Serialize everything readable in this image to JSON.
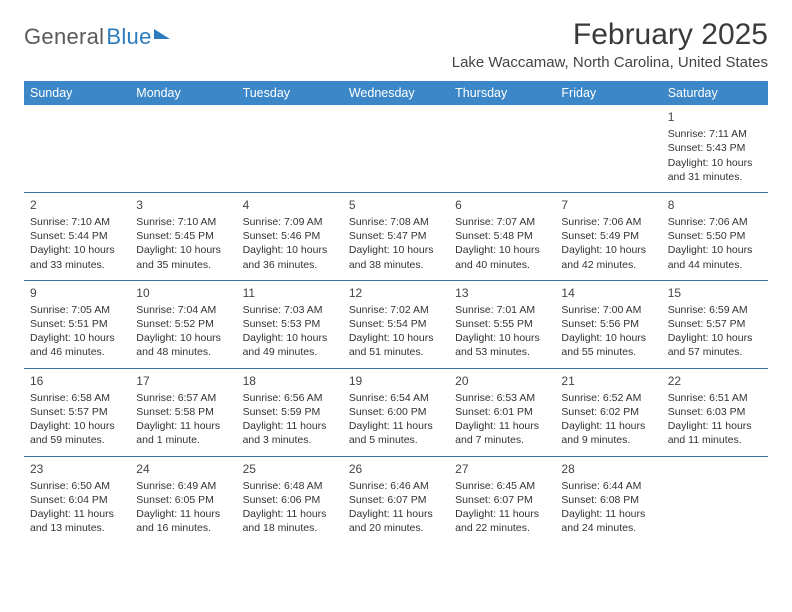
{
  "logo": {
    "textGray": "General",
    "textBlue": "Blue"
  },
  "header": {
    "month_title": "February 2025",
    "location": "Lake Waccamaw, North Carolina, United States"
  },
  "colors": {
    "header_bg": "#3b87c8",
    "header_text": "#ffffff",
    "row_border": "#3b6f9e",
    "body_text": "#333333",
    "title_text": "#3a3a3a",
    "logo_gray": "#5a5a5a",
    "logo_blue": "#2b7bbd",
    "background": "#ffffff"
  },
  "day_names": [
    "Sunday",
    "Monday",
    "Tuesday",
    "Wednesday",
    "Thursday",
    "Friday",
    "Saturday"
  ],
  "calendar": {
    "first_weekday_index": 6,
    "days": [
      {
        "n": 1,
        "sunrise": "7:11 AM",
        "sunset": "5:43 PM",
        "daylight": "10 hours and 31 minutes."
      },
      {
        "n": 2,
        "sunrise": "7:10 AM",
        "sunset": "5:44 PM",
        "daylight": "10 hours and 33 minutes."
      },
      {
        "n": 3,
        "sunrise": "7:10 AM",
        "sunset": "5:45 PM",
        "daylight": "10 hours and 35 minutes."
      },
      {
        "n": 4,
        "sunrise": "7:09 AM",
        "sunset": "5:46 PM",
        "daylight": "10 hours and 36 minutes."
      },
      {
        "n": 5,
        "sunrise": "7:08 AM",
        "sunset": "5:47 PM",
        "daylight": "10 hours and 38 minutes."
      },
      {
        "n": 6,
        "sunrise": "7:07 AM",
        "sunset": "5:48 PM",
        "daylight": "10 hours and 40 minutes."
      },
      {
        "n": 7,
        "sunrise": "7:06 AM",
        "sunset": "5:49 PM",
        "daylight": "10 hours and 42 minutes."
      },
      {
        "n": 8,
        "sunrise": "7:06 AM",
        "sunset": "5:50 PM",
        "daylight": "10 hours and 44 minutes."
      },
      {
        "n": 9,
        "sunrise": "7:05 AM",
        "sunset": "5:51 PM",
        "daylight": "10 hours and 46 minutes."
      },
      {
        "n": 10,
        "sunrise": "7:04 AM",
        "sunset": "5:52 PM",
        "daylight": "10 hours and 48 minutes."
      },
      {
        "n": 11,
        "sunrise": "7:03 AM",
        "sunset": "5:53 PM",
        "daylight": "10 hours and 49 minutes."
      },
      {
        "n": 12,
        "sunrise": "7:02 AM",
        "sunset": "5:54 PM",
        "daylight": "10 hours and 51 minutes."
      },
      {
        "n": 13,
        "sunrise": "7:01 AM",
        "sunset": "5:55 PM",
        "daylight": "10 hours and 53 minutes."
      },
      {
        "n": 14,
        "sunrise": "7:00 AM",
        "sunset": "5:56 PM",
        "daylight": "10 hours and 55 minutes."
      },
      {
        "n": 15,
        "sunrise": "6:59 AM",
        "sunset": "5:57 PM",
        "daylight": "10 hours and 57 minutes."
      },
      {
        "n": 16,
        "sunrise": "6:58 AM",
        "sunset": "5:57 PM",
        "daylight": "10 hours and 59 minutes."
      },
      {
        "n": 17,
        "sunrise": "6:57 AM",
        "sunset": "5:58 PM",
        "daylight": "11 hours and 1 minute."
      },
      {
        "n": 18,
        "sunrise": "6:56 AM",
        "sunset": "5:59 PM",
        "daylight": "11 hours and 3 minutes."
      },
      {
        "n": 19,
        "sunrise": "6:54 AM",
        "sunset": "6:00 PM",
        "daylight": "11 hours and 5 minutes."
      },
      {
        "n": 20,
        "sunrise": "6:53 AM",
        "sunset": "6:01 PM",
        "daylight": "11 hours and 7 minutes."
      },
      {
        "n": 21,
        "sunrise": "6:52 AM",
        "sunset": "6:02 PM",
        "daylight": "11 hours and 9 minutes."
      },
      {
        "n": 22,
        "sunrise": "6:51 AM",
        "sunset": "6:03 PM",
        "daylight": "11 hours and 11 minutes."
      },
      {
        "n": 23,
        "sunrise": "6:50 AM",
        "sunset": "6:04 PM",
        "daylight": "11 hours and 13 minutes."
      },
      {
        "n": 24,
        "sunrise": "6:49 AM",
        "sunset": "6:05 PM",
        "daylight": "11 hours and 16 minutes."
      },
      {
        "n": 25,
        "sunrise": "6:48 AM",
        "sunset": "6:06 PM",
        "daylight": "11 hours and 18 minutes."
      },
      {
        "n": 26,
        "sunrise": "6:46 AM",
        "sunset": "6:07 PM",
        "daylight": "11 hours and 20 minutes."
      },
      {
        "n": 27,
        "sunrise": "6:45 AM",
        "sunset": "6:07 PM",
        "daylight": "11 hours and 22 minutes."
      },
      {
        "n": 28,
        "sunrise": "6:44 AM",
        "sunset": "6:08 PM",
        "daylight": "11 hours and 24 minutes."
      }
    ]
  },
  "labels": {
    "sunrise_prefix": "Sunrise: ",
    "sunset_prefix": "Sunset: ",
    "daylight_prefix": "Daylight: "
  }
}
